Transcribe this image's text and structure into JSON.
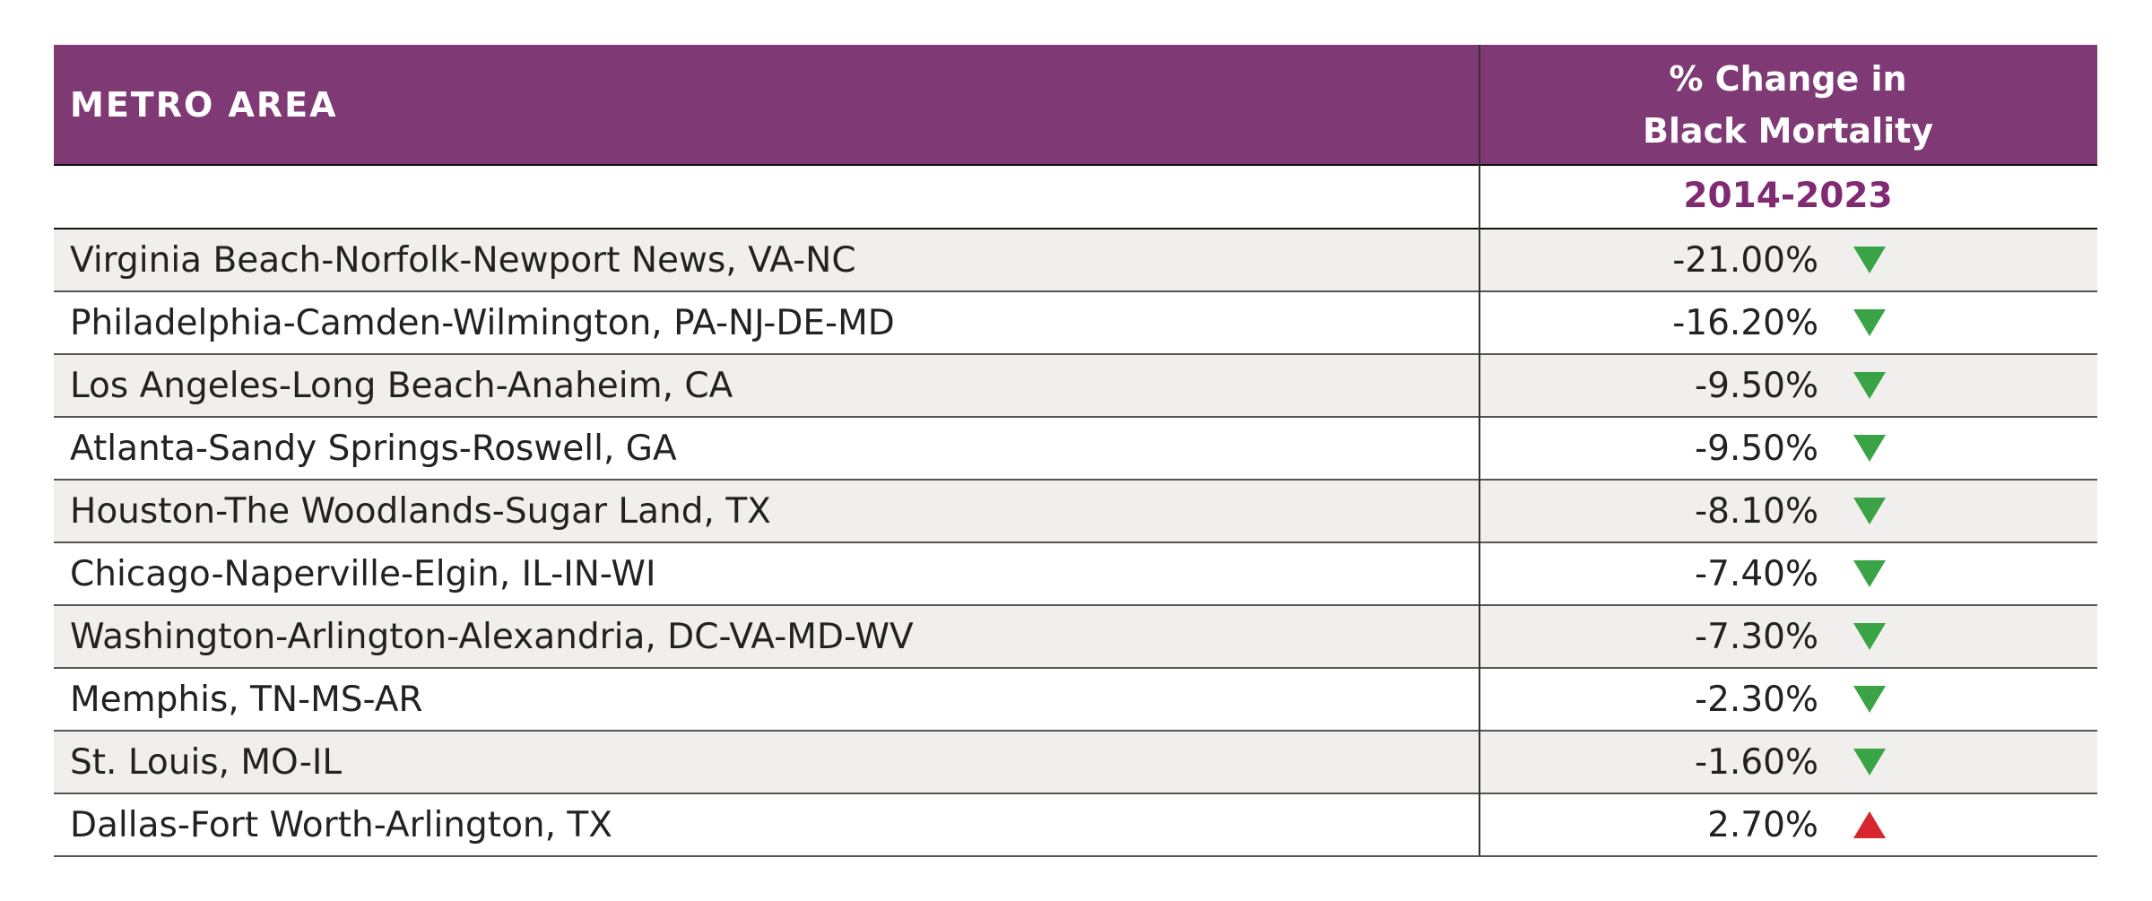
{
  "table": {
    "header": {
      "columns": [
        "METRO AREA",
        "% Change in Black Mortality"
      ],
      "period": "2014-2023"
    },
    "rows": [
      [
        "Virginia Beach-Norfolk-Newport News, VA-NC",
        "-21.00%"
      ],
      [
        "Philadelphia-Camden-Wilmington, PA-NJ-DE-MD",
        "-16.20%"
      ],
      [
        "Los Angeles-Long Beach-Anaheim, CA",
        "-9.50%"
      ],
      [
        "Atlanta-Sandy Springs-Roswell, GA",
        "-9.50%"
      ],
      [
        "Houston-The Woodlands-Sugar Land, TX",
        "-8.10%"
      ],
      [
        "Chicago-Naperville-Elgin, IL-IN-WI",
        "-7.40%"
      ],
      [
        "Washington-Arlington-Alexandria, DC-VA-MD-WV",
        "-7.30%"
      ],
      [
        "Memphis, TN-MS-AR",
        "-2.30%"
      ],
      [
        "St. Louis, MO-IL",
        "-1.60%"
      ],
      [
        "Dallas-Fort Worth-Arlington, TX",
        "2.70%"
      ]
    ]
  }
}
